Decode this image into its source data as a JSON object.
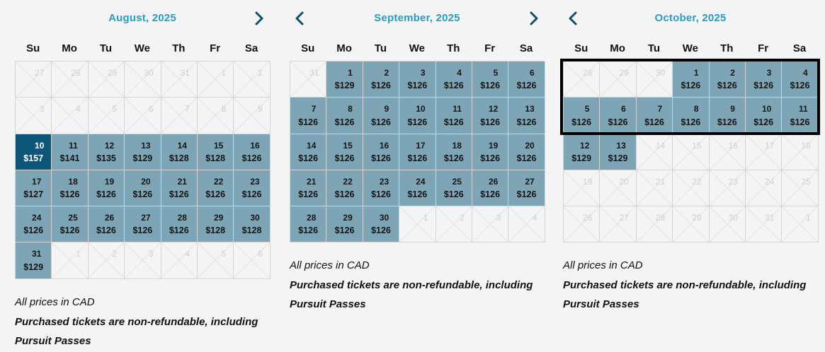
{
  "weekdays": [
    "Su",
    "Mo",
    "Tu",
    "We",
    "Th",
    "Fr",
    "Sa"
  ],
  "note_currency": "All prices in CAD",
  "note_refund": "Purchased tickets are non-refundable, including Pursuit Passes",
  "colors": {
    "title": "#2a9bc4",
    "available": "#7ea5b5",
    "selected": "#0d5679",
    "nav": "#0b4f6c"
  },
  "months": [
    {
      "title": "August, 2025",
      "prev": false,
      "next": true,
      "cells": [
        {
          "d": "27",
          "s": "x"
        },
        {
          "d": "28",
          "s": "x"
        },
        {
          "d": "29",
          "s": "x"
        },
        {
          "d": "30",
          "s": "x"
        },
        {
          "d": "31",
          "s": "x"
        },
        {
          "d": "1",
          "s": "x"
        },
        {
          "d": "2",
          "s": "x"
        },
        {
          "d": "3",
          "s": "x"
        },
        {
          "d": "4",
          "s": "x"
        },
        {
          "d": "5",
          "s": "x"
        },
        {
          "d": "6",
          "s": "x"
        },
        {
          "d": "7",
          "s": "x"
        },
        {
          "d": "8",
          "s": "x"
        },
        {
          "d": "9",
          "s": "x"
        },
        {
          "d": "10",
          "p": "$157",
          "s": "sel"
        },
        {
          "d": "11",
          "p": "$141",
          "s": "a"
        },
        {
          "d": "12",
          "p": "$135",
          "s": "a"
        },
        {
          "d": "13",
          "p": "$129",
          "s": "a"
        },
        {
          "d": "14",
          "p": "$128",
          "s": "a"
        },
        {
          "d": "15",
          "p": "$128",
          "s": "a"
        },
        {
          "d": "16",
          "p": "$126",
          "s": "a"
        },
        {
          "d": "17",
          "p": "$127",
          "s": "a"
        },
        {
          "d": "18",
          "p": "$126",
          "s": "a"
        },
        {
          "d": "19",
          "p": "$126",
          "s": "a"
        },
        {
          "d": "20",
          "p": "$126",
          "s": "a"
        },
        {
          "d": "21",
          "p": "$126",
          "s": "a"
        },
        {
          "d": "22",
          "p": "$126",
          "s": "a"
        },
        {
          "d": "23",
          "p": "$126",
          "s": "a"
        },
        {
          "d": "24",
          "p": "$126",
          "s": "a"
        },
        {
          "d": "25",
          "p": "$126",
          "s": "a"
        },
        {
          "d": "26",
          "p": "$126",
          "s": "a"
        },
        {
          "d": "27",
          "p": "$126",
          "s": "a"
        },
        {
          "d": "28",
          "p": "$126",
          "s": "a"
        },
        {
          "d": "29",
          "p": "$128",
          "s": "a"
        },
        {
          "d": "30",
          "p": "$128",
          "s": "a"
        },
        {
          "d": "31",
          "p": "$129",
          "s": "a"
        },
        {
          "d": "1",
          "s": "x"
        },
        {
          "d": "2",
          "s": "x"
        },
        {
          "d": "3",
          "s": "x"
        },
        {
          "d": "4",
          "s": "x"
        },
        {
          "d": "5",
          "s": "x"
        },
        {
          "d": "6",
          "s": "x"
        }
      ]
    },
    {
      "title": "September, 2025",
      "prev": true,
      "next": true,
      "cells": [
        {
          "d": "31",
          "s": "x"
        },
        {
          "d": "1",
          "p": "$129",
          "s": "a"
        },
        {
          "d": "2",
          "p": "$126",
          "s": "a"
        },
        {
          "d": "3",
          "p": "$126",
          "s": "a"
        },
        {
          "d": "4",
          "p": "$126",
          "s": "a"
        },
        {
          "d": "5",
          "p": "$126",
          "s": "a"
        },
        {
          "d": "6",
          "p": "$126",
          "s": "a"
        },
        {
          "d": "7",
          "p": "$126",
          "s": "a"
        },
        {
          "d": "8",
          "p": "$126",
          "s": "a"
        },
        {
          "d": "9",
          "p": "$126",
          "s": "a"
        },
        {
          "d": "10",
          "p": "$126",
          "s": "a"
        },
        {
          "d": "11",
          "p": "$126",
          "s": "a"
        },
        {
          "d": "12",
          "p": "$126",
          "s": "a"
        },
        {
          "d": "13",
          "p": "$126",
          "s": "a"
        },
        {
          "d": "14",
          "p": "$126",
          "s": "a"
        },
        {
          "d": "15",
          "p": "$126",
          "s": "a"
        },
        {
          "d": "16",
          "p": "$126",
          "s": "a"
        },
        {
          "d": "17",
          "p": "$126",
          "s": "a"
        },
        {
          "d": "18",
          "p": "$126",
          "s": "a"
        },
        {
          "d": "19",
          "p": "$126",
          "s": "a"
        },
        {
          "d": "20",
          "p": "$126",
          "s": "a"
        },
        {
          "d": "21",
          "p": "$126",
          "s": "a"
        },
        {
          "d": "22",
          "p": "$126",
          "s": "a"
        },
        {
          "d": "23",
          "p": "$126",
          "s": "a"
        },
        {
          "d": "24",
          "p": "$126",
          "s": "a"
        },
        {
          "d": "25",
          "p": "$126",
          "s": "a"
        },
        {
          "d": "26",
          "p": "$126",
          "s": "a"
        },
        {
          "d": "27",
          "p": "$126",
          "s": "a"
        },
        {
          "d": "28",
          "p": "$126",
          "s": "a"
        },
        {
          "d": "29",
          "p": "$126",
          "s": "a"
        },
        {
          "d": "30",
          "p": "$126",
          "s": "a"
        },
        {
          "d": "1",
          "s": "x"
        },
        {
          "d": "2",
          "s": "x"
        },
        {
          "d": "3",
          "s": "x"
        },
        {
          "d": "4",
          "s": "x"
        }
      ]
    },
    {
      "title": "October, 2025",
      "prev": true,
      "next": false,
      "cells": [
        {
          "d": "28",
          "s": "x"
        },
        {
          "d": "29",
          "s": "x"
        },
        {
          "d": "30",
          "s": "x"
        },
        {
          "d": "1",
          "p": "$126",
          "s": "a"
        },
        {
          "d": "2",
          "p": "$126",
          "s": "a"
        },
        {
          "d": "3",
          "p": "$126",
          "s": "a"
        },
        {
          "d": "4",
          "p": "$126",
          "s": "a"
        },
        {
          "d": "5",
          "p": "$126",
          "s": "a"
        },
        {
          "d": "6",
          "p": "$126",
          "s": "a"
        },
        {
          "d": "7",
          "p": "$126",
          "s": "a"
        },
        {
          "d": "8",
          "p": "$126",
          "s": "a"
        },
        {
          "d": "9",
          "p": "$126",
          "s": "a"
        },
        {
          "d": "10",
          "p": "$126",
          "s": "a"
        },
        {
          "d": "11",
          "p": "$126",
          "s": "a"
        },
        {
          "d": "12",
          "p": "$129",
          "s": "a"
        },
        {
          "d": "13",
          "p": "$129",
          "s": "a"
        },
        {
          "d": "14",
          "s": "x"
        },
        {
          "d": "15",
          "s": "x"
        },
        {
          "d": "16",
          "s": "x"
        },
        {
          "d": "17",
          "s": "x"
        },
        {
          "d": "18",
          "s": "x"
        },
        {
          "d": "19",
          "s": "x"
        },
        {
          "d": "20",
          "s": "x"
        },
        {
          "d": "21",
          "s": "x"
        },
        {
          "d": "22",
          "s": "x"
        },
        {
          "d": "23",
          "s": "x"
        },
        {
          "d": "24",
          "s": "x"
        },
        {
          "d": "25",
          "s": "x"
        },
        {
          "d": "26",
          "s": "x"
        },
        {
          "d": "27",
          "s": "x"
        },
        {
          "d": "28",
          "s": "x"
        },
        {
          "d": "29",
          "s": "x"
        },
        {
          "d": "30",
          "s": "x"
        },
        {
          "d": "31",
          "s": "x"
        },
        {
          "d": "1",
          "s": "x"
        }
      ]
    }
  ]
}
